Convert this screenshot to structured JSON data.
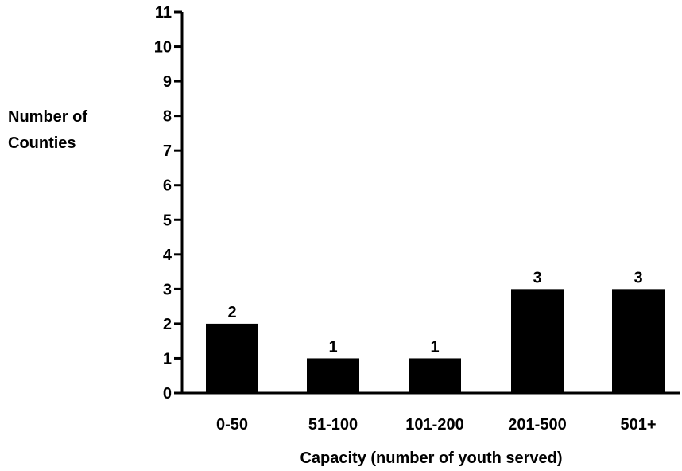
{
  "chart_data": {
    "type": "bar",
    "categories": [
      "0-50",
      "51-100",
      "101-200",
      "201-500",
      "501+"
    ],
    "values": [
      2,
      1,
      1,
      3,
      3
    ],
    "data_labels": [
      "2",
      "1",
      "1",
      "3",
      "3"
    ],
    "title": "",
    "xlabel": "Capacity (number of youth served)",
    "ylabel_lines": [
      "Number of",
      "Counties"
    ],
    "ylim": [
      0,
      11
    ],
    "yticks": [
      0,
      1,
      2,
      3,
      4,
      5,
      6,
      7,
      8,
      9,
      10,
      11
    ],
    "grid": false,
    "legend": "none",
    "bar_color": "#000000",
    "axis_color": "#000000"
  }
}
